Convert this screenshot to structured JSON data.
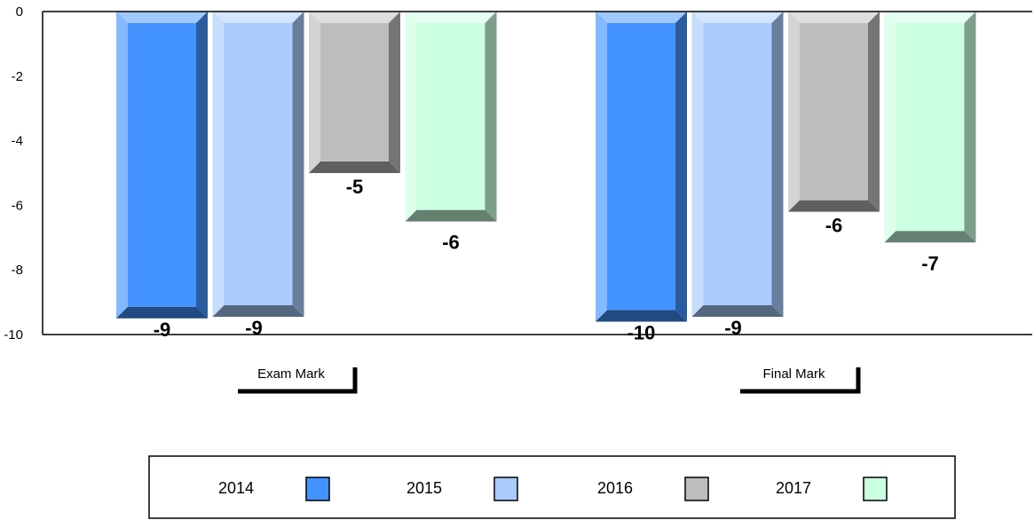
{
  "chart_data": {
    "type": "bar",
    "categories": [
      "Exam Mark",
      "Final Mark"
    ],
    "series": [
      {
        "name": "2014",
        "values": [
          -9.5,
          -9.6
        ],
        "labels": [
          "-9",
          "-10"
        ],
        "color": "#4393ff"
      },
      {
        "name": "2015",
        "values": [
          -9.45,
          -9.45
        ],
        "labels": [
          "-9",
          "-9"
        ],
        "color": "#a9cbfe"
      },
      {
        "name": "2016",
        "values": [
          -5.0,
          -6.2
        ],
        "labels": [
          "-5",
          "-6"
        ],
        "color": "#bdbdbd"
      },
      {
        "name": "2017",
        "values": [
          -6.5,
          -7.15
        ],
        "labels": [
          "-6",
          "-7"
        ],
        "color": "#caffe0"
      }
    ],
    "yticks": [
      "0",
      "-2",
      "-4",
      "-6",
      "-8",
      "-10"
    ],
    "ylim": [
      -10,
      0
    ],
    "grid": false,
    "legend": "bottom"
  }
}
